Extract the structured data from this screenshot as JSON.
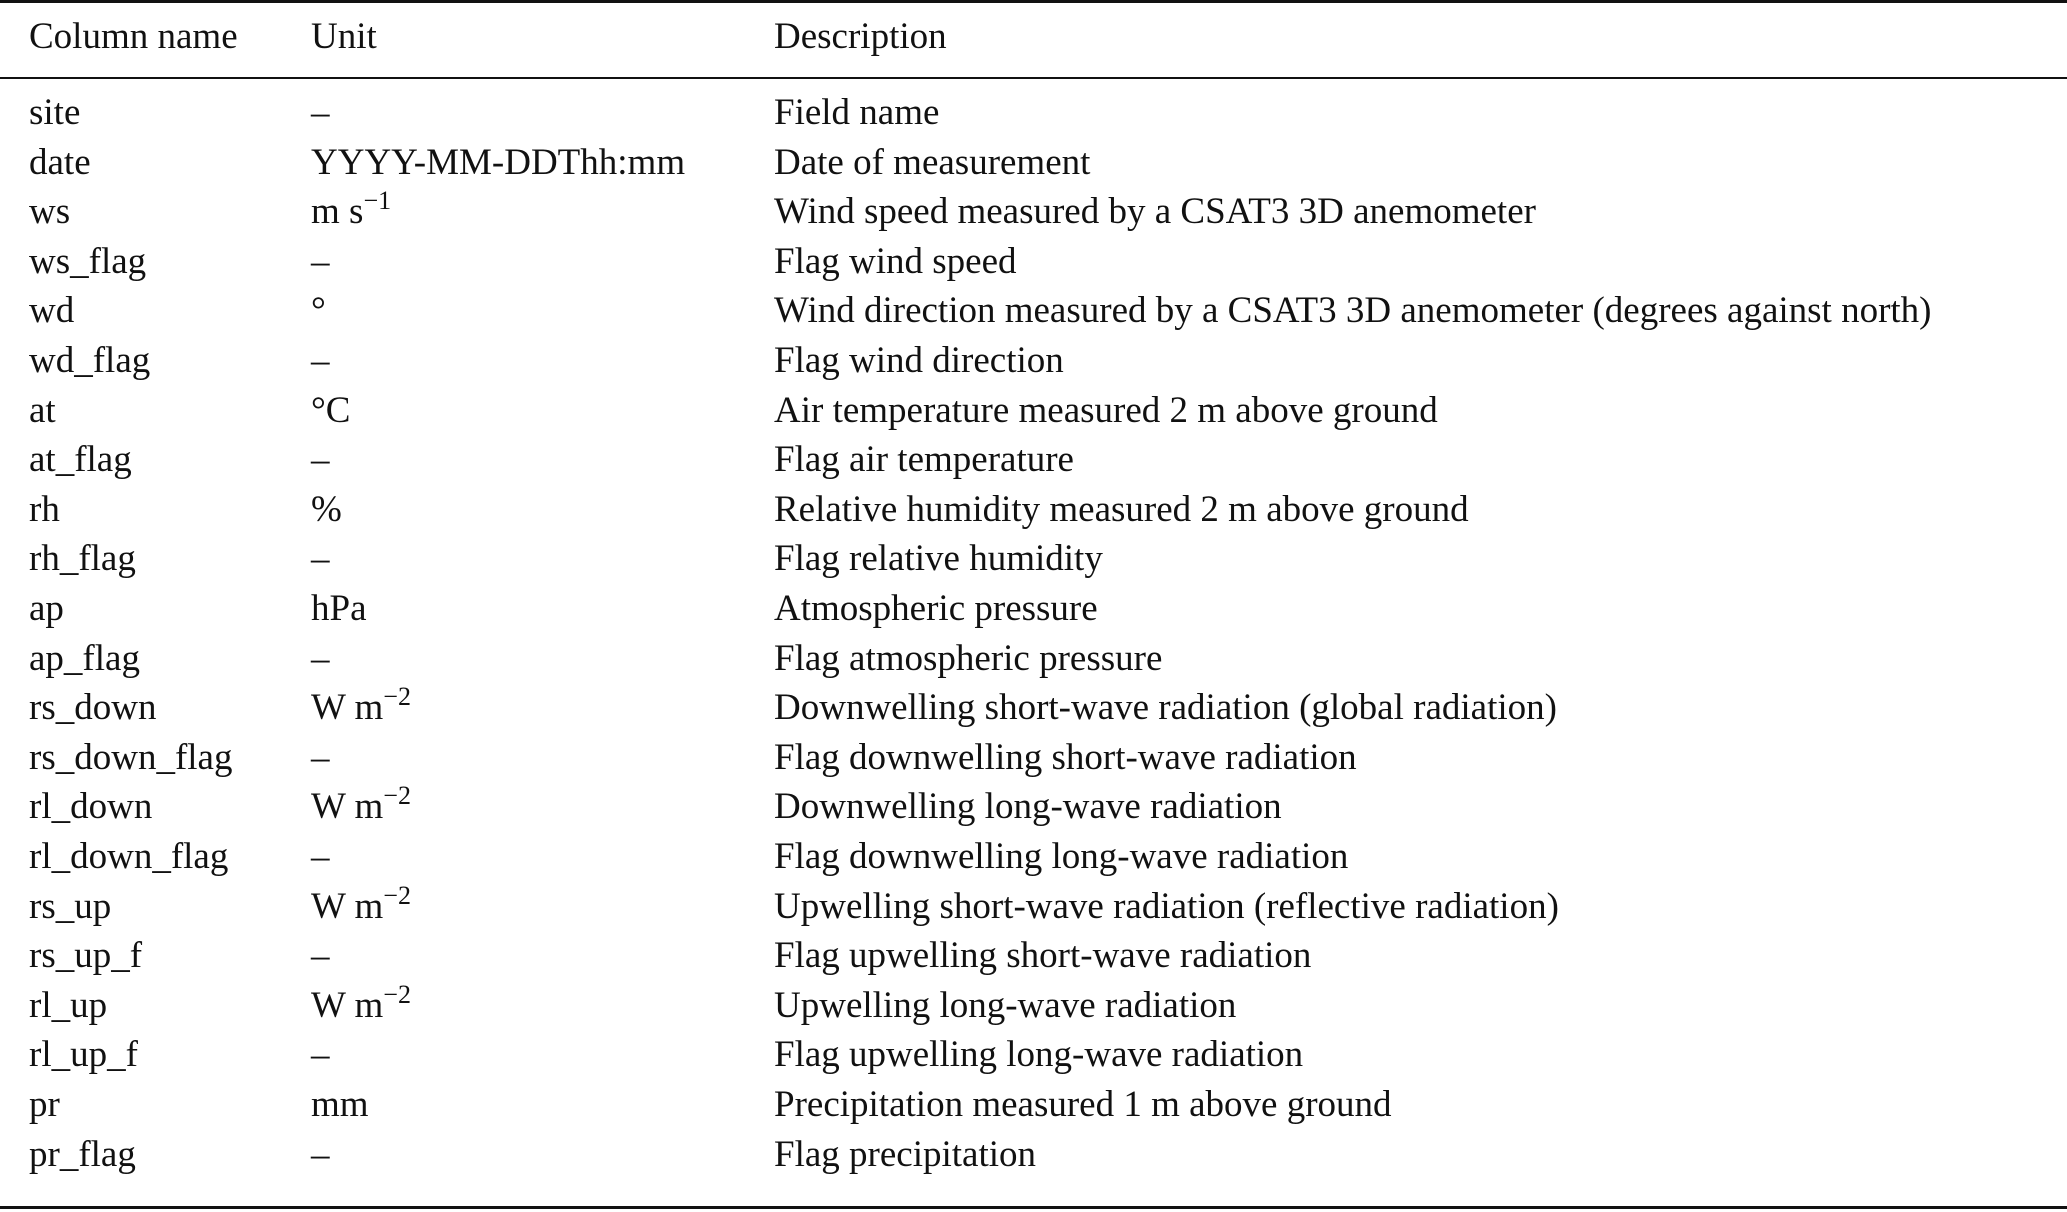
{
  "table": {
    "headers": [
      "Column name",
      "Unit",
      "Description"
    ],
    "rows": [
      {
        "name": "site",
        "unit": "–",
        "unit_sup": "",
        "desc": "Field name"
      },
      {
        "name": "date",
        "unit": "YYYY-MM-DDThh:mm",
        "unit_sup": "",
        "desc": "Date of measurement"
      },
      {
        "name": "ws",
        "unit": "m s",
        "unit_sup": "−1",
        "desc": "Wind speed measured by a CSAT3 3D anemometer"
      },
      {
        "name": "ws_flag",
        "unit": "–",
        "unit_sup": "",
        "desc": "Flag wind speed"
      },
      {
        "name": "wd",
        "unit": "°",
        "unit_sup": "",
        "desc": "Wind direction measured by a CSAT3 3D anemometer (degrees against north)"
      },
      {
        "name": "wd_flag",
        "unit": "–",
        "unit_sup": "",
        "desc": "Flag wind direction"
      },
      {
        "name": "at",
        "unit": "°C",
        "unit_sup": "",
        "desc": "Air temperature measured 2 m above ground"
      },
      {
        "name": "at_flag",
        "unit": "–",
        "unit_sup": "",
        "desc": "Flag air temperature"
      },
      {
        "name": "rh",
        "unit": "%",
        "unit_sup": "",
        "desc": "Relative humidity measured 2 m above ground"
      },
      {
        "name": "rh_flag",
        "unit": "–",
        "unit_sup": "",
        "desc": "Flag relative humidity"
      },
      {
        "name": "ap",
        "unit": "hPa",
        "unit_sup": "",
        "desc": "Atmospheric pressure"
      },
      {
        "name": "ap_flag",
        "unit": "–",
        "unit_sup": "",
        "desc": "Flag atmospheric pressure"
      },
      {
        "name": "rs_down",
        "unit": "W m",
        "unit_sup": "−2",
        "desc": "Downwelling short-wave radiation (global radiation)"
      },
      {
        "name": "rs_down_flag",
        "unit": "–",
        "unit_sup": "",
        "desc": "Flag downwelling short-wave radiation"
      },
      {
        "name": "rl_down",
        "unit": "W m",
        "unit_sup": "−2",
        "desc": "Downwelling long-wave radiation"
      },
      {
        "name": "rl_down_flag",
        "unit": "–",
        "unit_sup": "",
        "desc": "Flag downwelling long-wave radiation"
      },
      {
        "name": "rs_up",
        "unit": "W m",
        "unit_sup": "−2",
        "desc": "Upwelling short-wave radiation (reflective radiation)"
      },
      {
        "name": "rs_up_f",
        "unit": "–",
        "unit_sup": "",
        "desc": "Flag upwelling short-wave radiation"
      },
      {
        "name": "rl_up",
        "unit": "W m",
        "unit_sup": "−2",
        "desc": "Upwelling long-wave radiation"
      },
      {
        "name": "rl_up_f",
        "unit": "–",
        "unit_sup": "",
        "desc": "Flag upwelling long-wave radiation"
      },
      {
        "name": "pr",
        "unit": "mm",
        "unit_sup": "",
        "desc": "Precipitation measured 1 m above ground"
      },
      {
        "name": "pr_flag",
        "unit": "–",
        "unit_sup": "",
        "desc": "Flag precipitation"
      }
    ]
  }
}
